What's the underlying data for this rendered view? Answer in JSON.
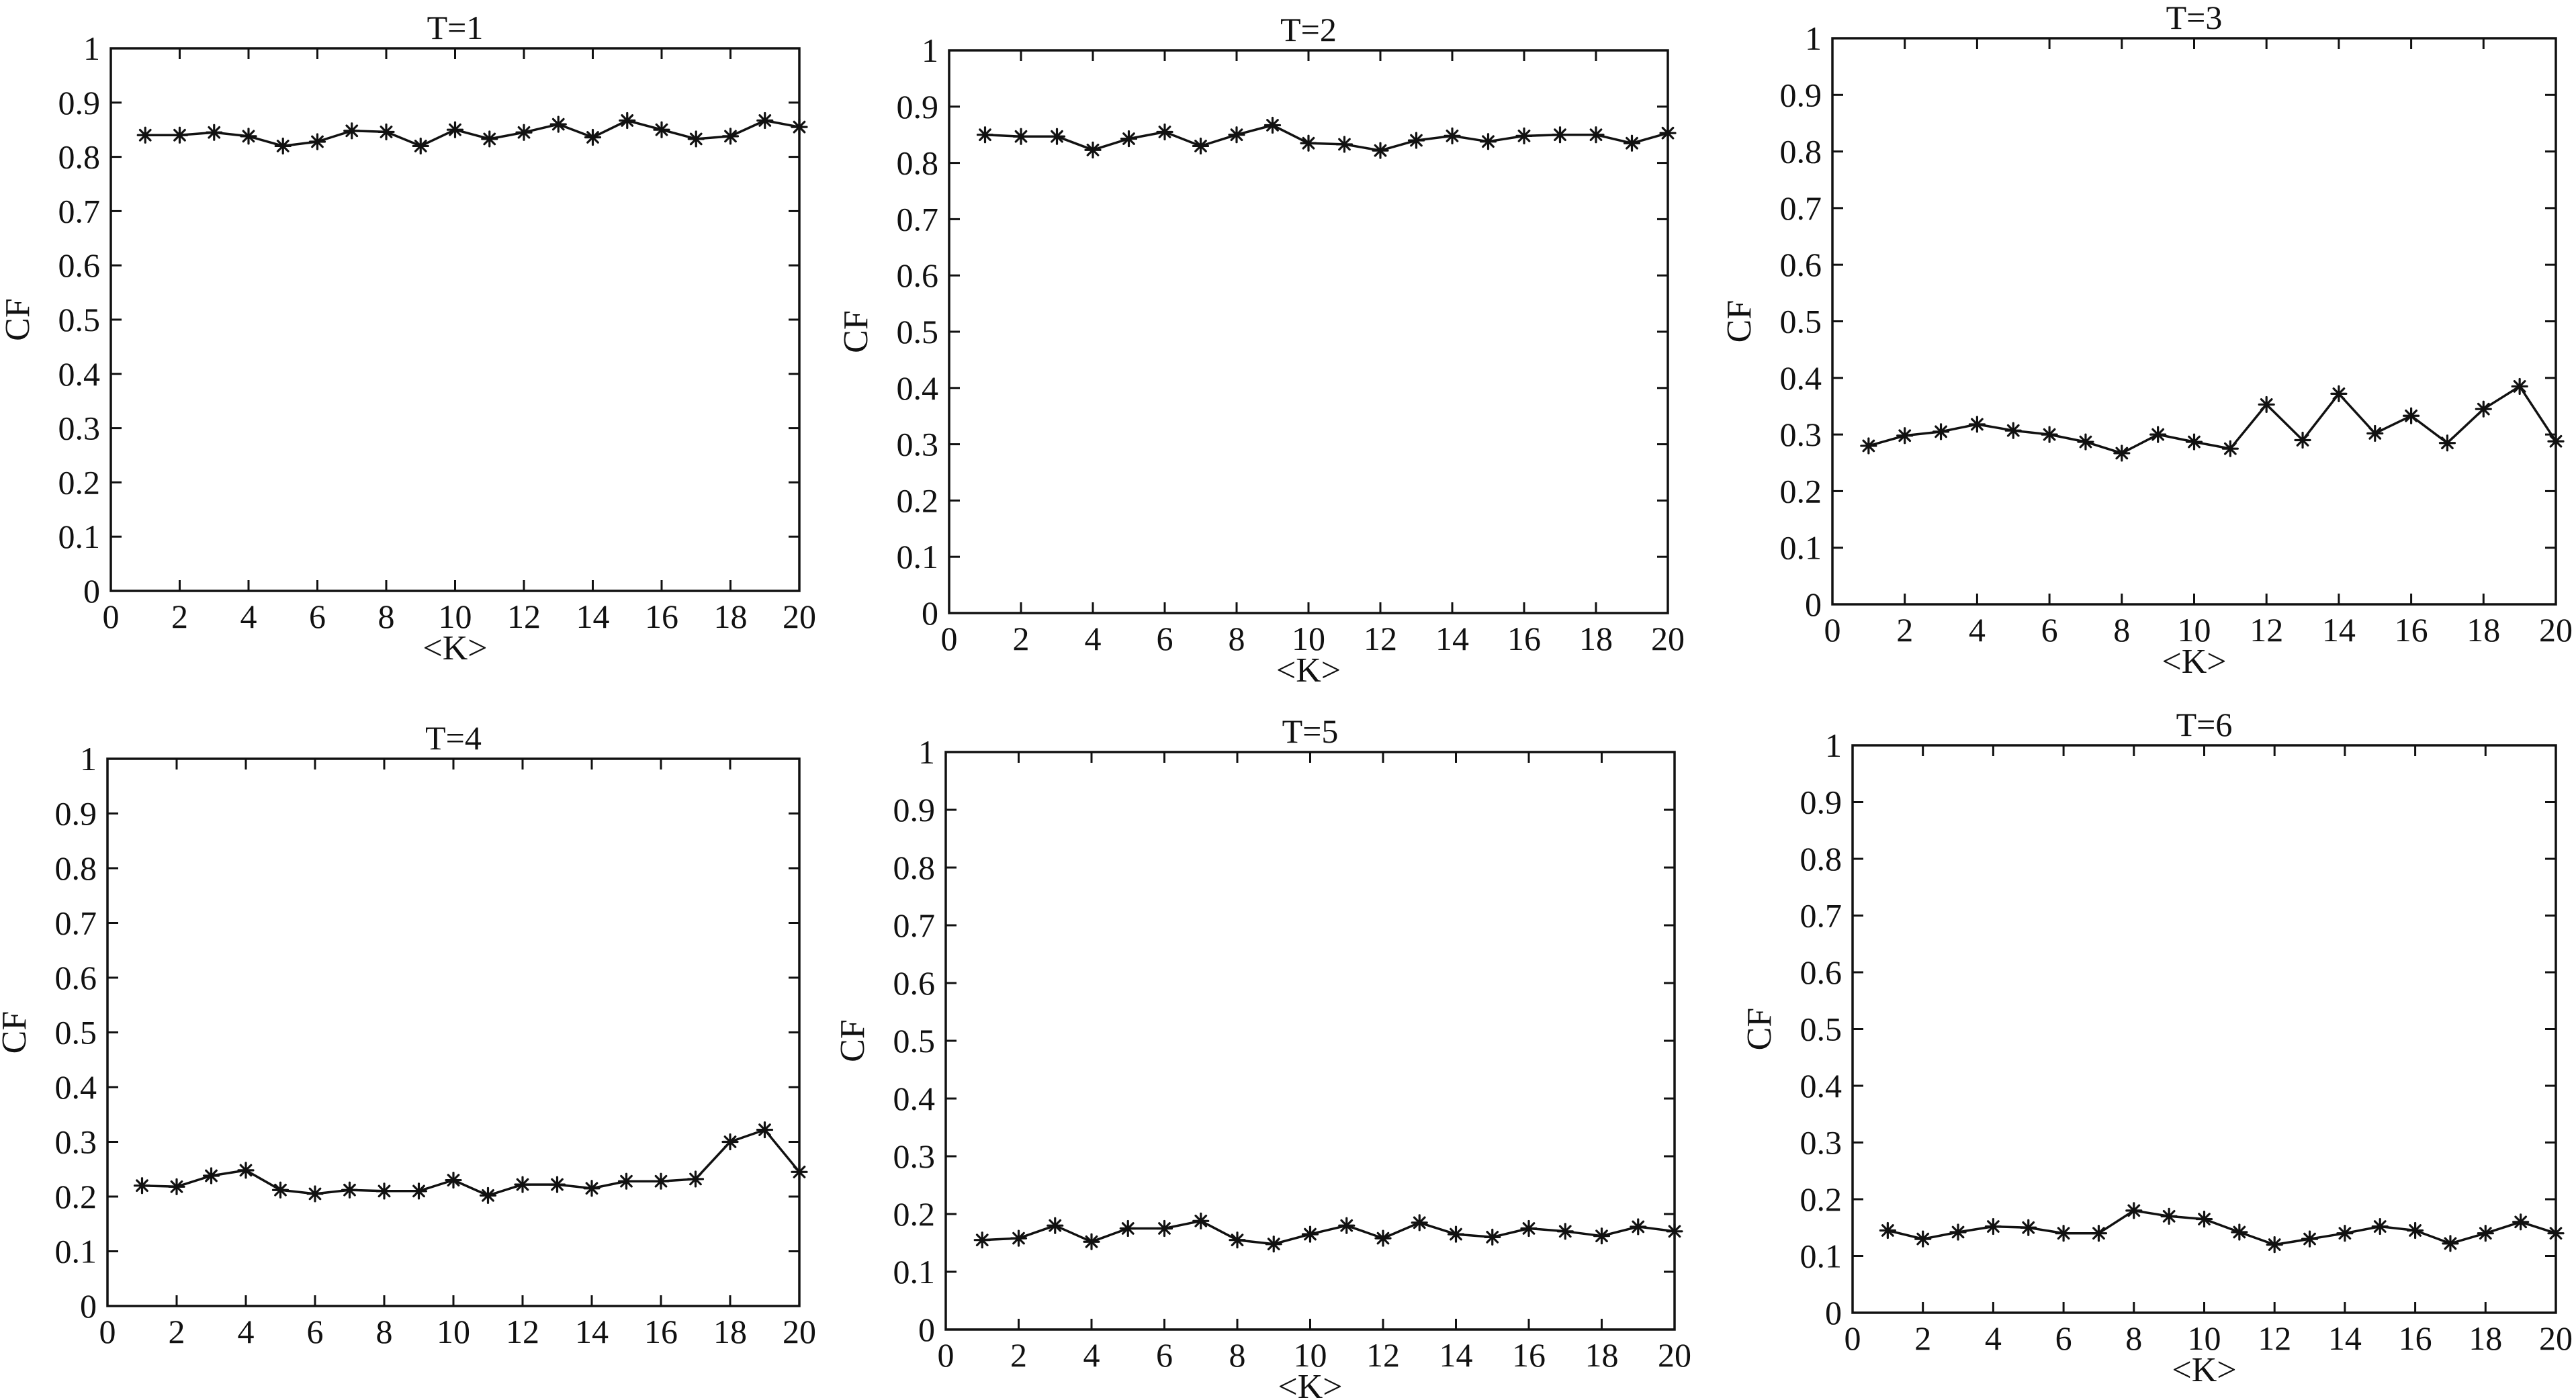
{
  "chart_data": [
    {
      "type": "line",
      "title": "T=1",
      "xlabel": "<K>",
      "ylabel": "CF",
      "xlim": [
        0,
        20
      ],
      "ylim": [
        0,
        1
      ],
      "xticks": [
        "0",
        "2",
        "4",
        "6",
        "8",
        "10",
        "12",
        "14",
        "16",
        "18",
        "20"
      ],
      "yticks": [
        "0",
        "0.1",
        "0.2",
        "0.3",
        "0.4",
        "0.5",
        "0.6",
        "0.7",
        "0.8",
        "0.9",
        "1"
      ],
      "grid": false,
      "marker": "asterisk",
      "x": [
        1,
        2,
        3,
        4,
        5,
        6,
        7,
        8,
        9,
        10,
        11,
        12,
        13,
        14,
        15,
        16,
        17,
        18,
        19,
        20
      ],
      "series": [
        {
          "values": [
            0.84,
            0.84,
            0.845,
            0.838,
            0.82,
            0.828,
            0.848,
            0.846,
            0.82,
            0.85,
            0.833,
            0.845,
            0.86,
            0.836,
            0.867,
            0.85,
            0.833,
            0.838,
            0.867,
            0.855
          ]
        }
      ]
    },
    {
      "type": "line",
      "title": "T=2",
      "xlabel": "<K>",
      "ylabel": "CF",
      "xlim": [
        0,
        20
      ],
      "ylim": [
        0,
        1
      ],
      "xticks": [
        "0",
        "2",
        "4",
        "6",
        "8",
        "10",
        "12",
        "14",
        "16",
        "18",
        "20"
      ],
      "yticks": [
        "0",
        "0.1",
        "0.2",
        "0.3",
        "0.4",
        "0.5",
        "0.6",
        "0.7",
        "0.8",
        "0.9",
        "1"
      ],
      "grid": false,
      "marker": "asterisk",
      "x": [
        1,
        2,
        3,
        4,
        5,
        6,
        7,
        8,
        9,
        10,
        11,
        12,
        13,
        14,
        15,
        16,
        17,
        18,
        19,
        20
      ],
      "series": [
        {
          "values": [
            0.85,
            0.847,
            0.847,
            0.823,
            0.843,
            0.855,
            0.83,
            0.85,
            0.867,
            0.835,
            0.833,
            0.822,
            0.84,
            0.848,
            0.838,
            0.848,
            0.85,
            0.85,
            0.835,
            0.853
          ]
        }
      ]
    },
    {
      "type": "line",
      "title": "T=3",
      "xlabel": "<K>",
      "ylabel": "CF",
      "xlim": [
        0,
        20
      ],
      "ylim": [
        0,
        1
      ],
      "xticks": [
        "0",
        "2",
        "4",
        "6",
        "8",
        "10",
        "12",
        "14",
        "16",
        "18",
        "20"
      ],
      "yticks": [
        "0",
        "0.1",
        "0.2",
        "0.3",
        "0.4",
        "0.5",
        "0.6",
        "0.7",
        "0.8",
        "0.9",
        "1"
      ],
      "grid": false,
      "marker": "asterisk",
      "x": [
        1,
        2,
        3,
        4,
        5,
        6,
        7,
        8,
        9,
        10,
        11,
        12,
        13,
        14,
        15,
        16,
        17,
        18,
        19,
        20
      ],
      "series": [
        {
          "values": [
            0.28,
            0.298,
            0.305,
            0.318,
            0.307,
            0.3,
            0.287,
            0.267,
            0.3,
            0.287,
            0.275,
            0.353,
            0.29,
            0.372,
            0.302,
            0.333,
            0.285,
            0.345,
            0.385,
            0.288
          ]
        }
      ]
    },
    {
      "type": "line",
      "title": "T=4",
      "xlabel": "",
      "ylabel": "CF",
      "xlim": [
        0,
        20
      ],
      "ylim": [
        0,
        1
      ],
      "xticks": [
        "0",
        "2",
        "4",
        "6",
        "8",
        "10",
        "12",
        "14",
        "16",
        "18",
        "20"
      ],
      "yticks": [
        "0",
        "0.1",
        "0.2",
        "0.3",
        "0.4",
        "0.5",
        "0.6",
        "0.7",
        "0.8",
        "0.9",
        "1"
      ],
      "grid": false,
      "marker": "asterisk",
      "x": [
        1,
        2,
        3,
        4,
        5,
        6,
        7,
        8,
        9,
        10,
        11,
        12,
        13,
        14,
        15,
        16,
        17,
        18,
        19,
        20
      ],
      "series": [
        {
          "values": [
            0.22,
            0.218,
            0.238,
            0.248,
            0.212,
            0.205,
            0.212,
            0.21,
            0.21,
            0.23,
            0.202,
            0.222,
            0.222,
            0.215,
            0.228,
            0.228,
            0.232,
            0.3,
            0.322,
            0.245
          ]
        }
      ]
    },
    {
      "type": "line",
      "title": "T=5",
      "xlabel": "<K>",
      "ylabel": "CF",
      "xlim": [
        0,
        20
      ],
      "ylim": [
        0,
        1
      ],
      "xticks": [
        "0",
        "2",
        "4",
        "6",
        "8",
        "10",
        "12",
        "14",
        "16",
        "18",
        "20"
      ],
      "yticks": [
        "0",
        "0.1",
        "0.2",
        "0.3",
        "0.4",
        "0.5",
        "0.6",
        "0.7",
        "0.8",
        "0.9",
        "1"
      ],
      "grid": false,
      "marker": "asterisk",
      "x": [
        1,
        2,
        3,
        4,
        5,
        6,
        7,
        8,
        9,
        10,
        11,
        12,
        13,
        14,
        15,
        16,
        17,
        18,
        19,
        20
      ],
      "series": [
        {
          "values": [
            0.155,
            0.158,
            0.18,
            0.152,
            0.175,
            0.175,
            0.188,
            0.155,
            0.148,
            0.165,
            0.18,
            0.158,
            0.185,
            0.165,
            0.16,
            0.175,
            0.17,
            0.162,
            0.178,
            0.17
          ]
        }
      ]
    },
    {
      "type": "line",
      "title": "T=6",
      "xlabel": "<K>",
      "ylabel": "CF",
      "xlim": [
        0,
        20
      ],
      "ylim": [
        0,
        1
      ],
      "xticks": [
        "0",
        "2",
        "4",
        "6",
        "8",
        "10",
        "12",
        "14",
        "16",
        "18",
        "20"
      ],
      "yticks": [
        "0",
        "0.1",
        "0.2",
        "0.3",
        "0.4",
        "0.5",
        "0.6",
        "0.7",
        "0.8",
        "0.9",
        "1"
      ],
      "grid": false,
      "marker": "asterisk",
      "x": [
        1,
        2,
        3,
        4,
        5,
        6,
        7,
        8,
        9,
        10,
        11,
        12,
        13,
        14,
        15,
        16,
        17,
        18,
        19,
        20
      ],
      "series": [
        {
          "values": [
            0.145,
            0.13,
            0.142,
            0.152,
            0.15,
            0.14,
            0.14,
            0.18,
            0.17,
            0.165,
            0.142,
            0.12,
            0.13,
            0.14,
            0.152,
            0.145,
            0.122,
            0.14,
            0.16,
            0.14
          ]
        }
      ]
    }
  ]
}
